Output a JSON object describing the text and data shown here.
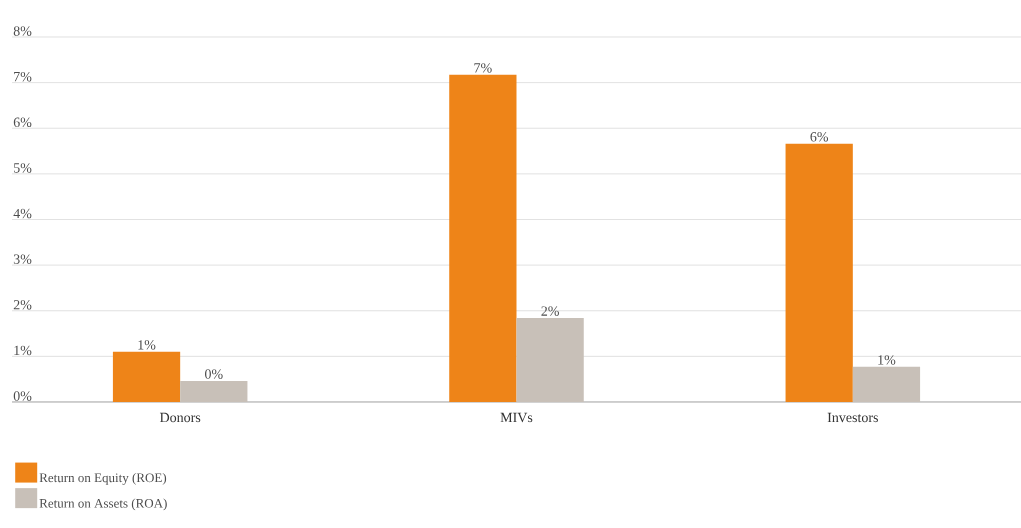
{
  "chart_data": {
    "type": "bar",
    "categories": [
      "Donors",
      "MIVs",
      "Investors"
    ],
    "series": [
      {
        "name": "Return on Equity (ROE)",
        "color": "#ee8418",
        "values": [
          1.1,
          7.17,
          5.66
        ],
        "value_labels": [
          "1%",
          "7%",
          "6%"
        ]
      },
      {
        "name": "Return on Assets (ROA)",
        "color": "#c8c0b8",
        "values": [
          0.46,
          1.84,
          0.77
        ],
        "value_labels": [
          "0%",
          "2%",
          "1%"
        ]
      }
    ],
    "ylim": [
      0,
      8
    ],
    "yticks": [
      {
        "value": 0,
        "label": "0%"
      },
      {
        "value": 1,
        "label": "1%"
      },
      {
        "value": 2,
        "label": "2%"
      },
      {
        "value": 3,
        "label": "3%"
      },
      {
        "value": 4,
        "label": "4%"
      },
      {
        "value": 5,
        "label": "5%"
      },
      {
        "value": 6,
        "label": "6%"
      },
      {
        "value": 7,
        "label": "7%"
      },
      {
        "value": 8,
        "label": "8%"
      }
    ],
    "grid": "y",
    "legend": "bottom left"
  }
}
